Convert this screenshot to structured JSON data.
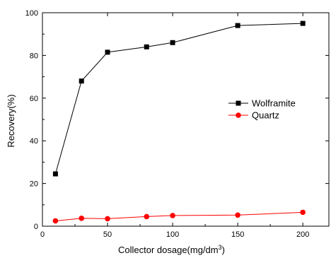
{
  "chart_data": {
    "type": "line",
    "title": "",
    "xlabel": "Collector dosage(mg/dm",
    "xlabel_sup": "3",
    "xlabel_end": ")",
    "ylabel": "Recovery(%)",
    "xlim": [
      0,
      220
    ],
    "ylim": [
      0,
      100
    ],
    "xticks": [
      0,
      50,
      100,
      150,
      200
    ],
    "yticks": [
      0,
      20,
      40,
      60,
      80,
      100
    ],
    "grid": false,
    "legend_position": "right-middle",
    "series": [
      {
        "name": "Wolframite",
        "color": "#000000",
        "marker": "square",
        "x": [
          10,
          30,
          50,
          80,
          100,
          150,
          200
        ],
        "y": [
          24.5,
          68,
          81.5,
          84,
          86,
          94,
          95
        ]
      },
      {
        "name": "Quartz",
        "color": "#ff0000",
        "marker": "circle",
        "x": [
          10,
          30,
          50,
          80,
          100,
          150,
          200
        ],
        "y": [
          2.5,
          3.7,
          3.5,
          4.5,
          5,
          5.2,
          6.5
        ]
      }
    ]
  }
}
